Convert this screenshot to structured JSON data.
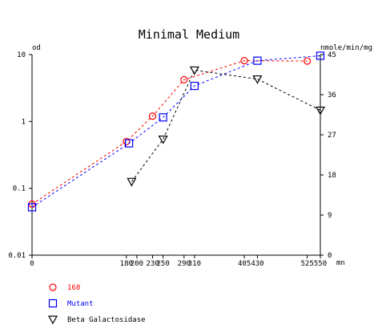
{
  "chart_data": {
    "type": "line",
    "title": "Minimal Medium",
    "y_left_label": "od",
    "y_right_label": "nmole/min/mg",
    "x_unit_label": "mn",
    "x_ticks": [
      0,
      180,
      200,
      230,
      250,
      290,
      310,
      405,
      430,
      525,
      550
    ],
    "x_range": [
      0,
      550
    ],
    "y_left_scale": "log",
    "y_left_range": [
      0.01,
      10
    ],
    "y_left_ticks": [
      "0.01",
      "0.1",
      "1",
      "10"
    ],
    "y_right_range": [
      0,
      45
    ],
    "y_right_ticks": [
      0,
      9,
      18,
      27,
      36,
      45
    ],
    "grid": false,
    "legend_position": "bottom-left",
    "series": [
      {
        "name": "168",
        "axis": "left",
        "color": "#ff0000",
        "marker": "circle",
        "line": "dashed",
        "x": [
          0,
          180,
          230,
          290,
          405,
          525
        ],
        "y": [
          0.058,
          0.5,
          1.2,
          4.2,
          8.1,
          8.0
        ]
      },
      {
        "name": "Mutant",
        "axis": "left",
        "color": "#0000ff",
        "marker": "square",
        "line": "dashed",
        "x": [
          0,
          185,
          250,
          310,
          430,
          550
        ],
        "y": [
          0.052,
          0.47,
          1.15,
          3.4,
          8.1,
          9.6
        ]
      },
      {
        "name": "Beta Galactosidase",
        "axis": "right",
        "color": "#000000",
        "marker": "triangle-down",
        "line": "dashed",
        "x": [
          190,
          250,
          310,
          430,
          550
        ],
        "y": [
          16.5,
          26,
          41.5,
          39.5,
          32.5
        ]
      }
    ]
  }
}
